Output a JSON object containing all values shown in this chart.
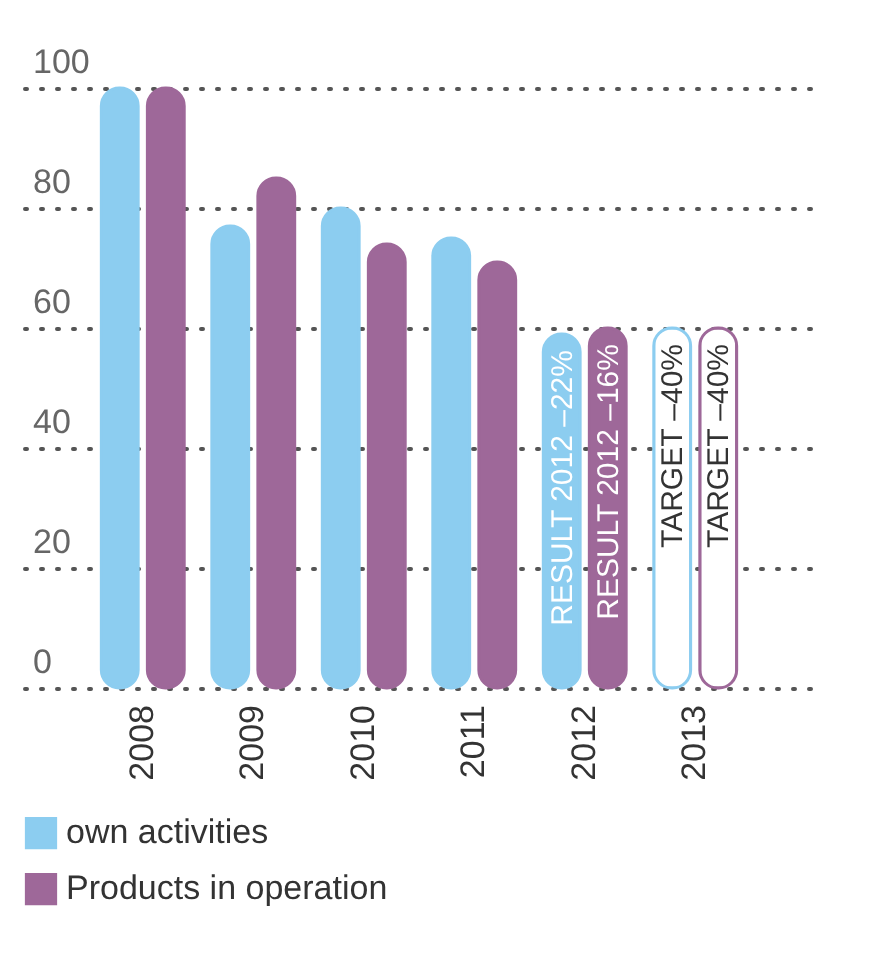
{
  "chart_data": {
    "type": "bar",
    "categories": [
      "2008",
      "2009",
      "2010",
      "2011",
      "2012",
      "2013"
    ],
    "series": [
      {
        "name": "own activities",
        "color": "#8ccdf0",
        "colors": [
          "#8ccdf0",
          "#8ccdf0",
          "#8ccdf0",
          "#8ccdf0",
          "#8ccdf0",
          "#ffffff"
        ],
        "values": [
          100,
          77,
          80,
          75,
          59,
          60
        ]
      },
      {
        "name": "Products in operation",
        "color": "#9e6899",
        "colors": [
          "#9e6899",
          "#9e6899",
          "#9e6899",
          "#9e6899",
          "#9e6899",
          "#ffffff"
        ],
        "values": [
          100,
          85,
          74,
          71,
          60,
          60
        ]
      }
    ],
    "annotations": [
      {
        "text": "RESULT 2012 –22%",
        "x": "2012",
        "y": 59
      },
      {
        "text": "RESULT 2012 –16%",
        "x": "2012",
        "y": 60
      },
      {
        "text": "TARGET –40%",
        "x": "2013",
        "y": 60
      },
      {
        "text": "TARGET –40%",
        "x": "2013",
        "y": 60
      }
    ],
    "ylim": [
      0,
      100
    ],
    "yticks": [
      0,
      20,
      40,
      60,
      80,
      100
    ],
    "grid": "y",
    "legend": "bottom"
  }
}
